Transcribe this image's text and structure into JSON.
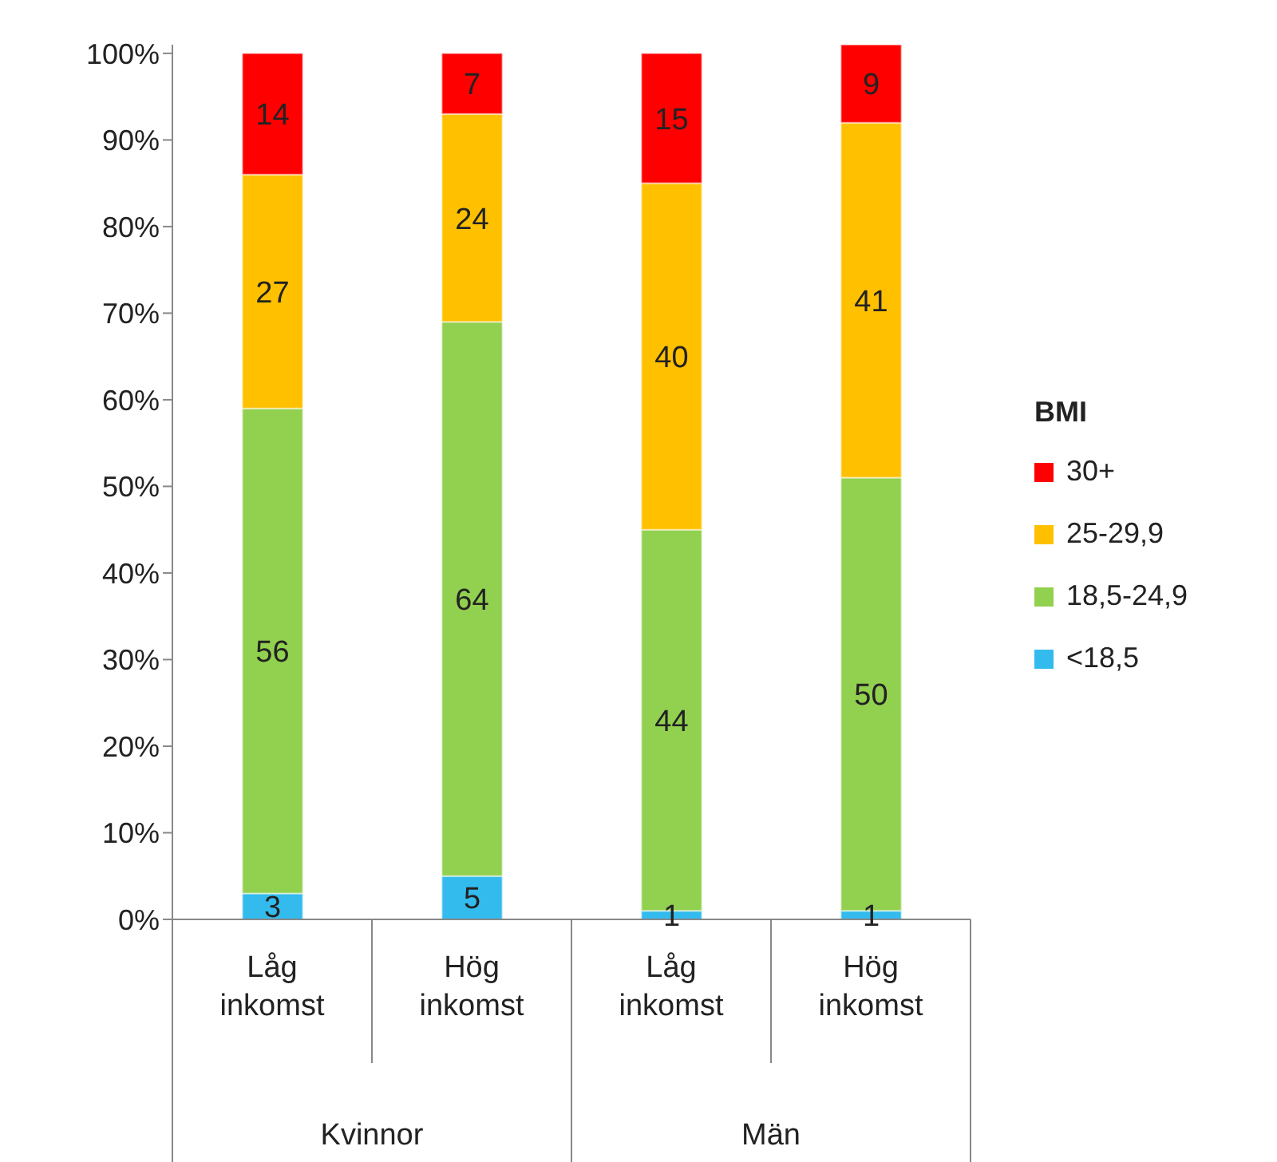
{
  "chart_data": {
    "type": "bar",
    "stacked": true,
    "categories": [
      "Låg inkomst",
      "Hög inkomst",
      "Låg inkomst",
      "Hög inkomst"
    ],
    "series": [
      {
        "name": "<18,5",
        "color": "#33bbee",
        "values": [
          3,
          5,
          1,
          1
        ]
      },
      {
        "name": "18,5-24,9",
        "color": "#92d050",
        "values": [
          56,
          64,
          44,
          50
        ]
      },
      {
        "name": "25-29,9",
        "color": "#ffc000",
        "values": [
          27,
          24,
          40,
          41
        ]
      },
      {
        "name": "30+",
        "color": "#ff0000",
        "values": [
          14,
          7,
          15,
          9
        ]
      }
    ],
    "ylim": [
      0,
      101
    ],
    "yticks": [
      {
        "value": 0,
        "label": "0%"
      },
      {
        "value": 10,
        "label": "10%"
      },
      {
        "value": 20,
        "label": "20%"
      },
      {
        "value": 30,
        "label": "30%"
      },
      {
        "value": 40,
        "label": "40%"
      },
      {
        "value": 50,
        "label": "50%"
      },
      {
        "value": 60,
        "label": "60%"
      },
      {
        "value": 70,
        "label": "70%"
      },
      {
        "value": 80,
        "label": "80%"
      },
      {
        "value": 90,
        "label": "90%"
      },
      {
        "value": 100,
        "label": "100%"
      }
    ],
    "legend": "right",
    "legend_title": "BMI",
    "data_labels": true,
    "grid": false,
    "annotations": [
      "Kvinnor",
      "Män"
    ]
  }
}
